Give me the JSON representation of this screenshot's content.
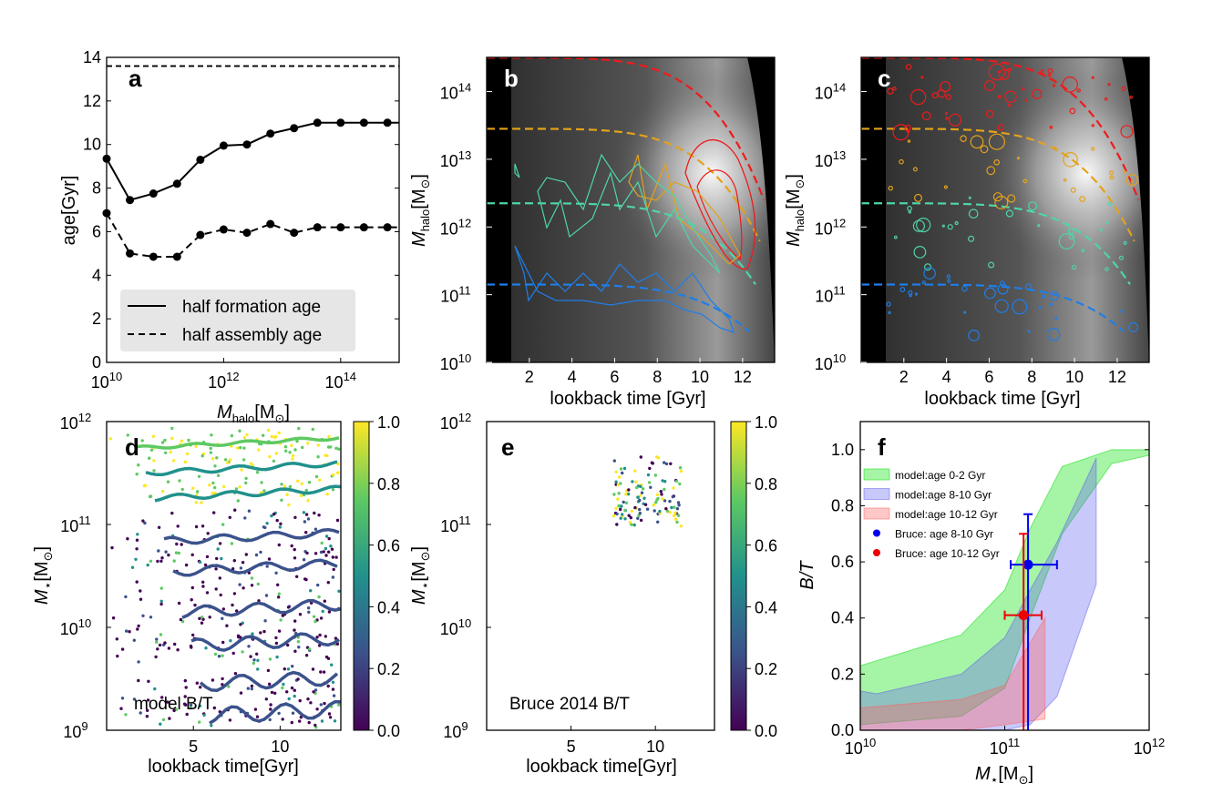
{
  "chart_data": [
    {
      "panel": "a",
      "type": "line",
      "xlabel": "M_halo[M_⊙]",
      "ylabel": "age[Gyr]",
      "xscale": "log",
      "xlim": [
        10000000000.0,
        1000000000000000.0
      ],
      "ylim": [
        0,
        14
      ],
      "x_ticks": [
        "10",
        "12",
        "14"
      ],
      "y_ticks": [
        "0",
        "2",
        "4",
        "6",
        "8",
        "10",
        "12",
        "14"
      ],
      "legend_position": "lower-left",
      "series": [
        {
          "name": "half formation age",
          "style": "solid",
          "x": [
            10000000000.0,
            25000000000.0,
            63000000000.0,
            160000000000.0,
            400000000000.0,
            1000000000000.0,
            2500000000000.0,
            6300000000000.0,
            16000000000000.0,
            40000000000000.0,
            100000000000000.0,
            250000000000000.0,
            630000000000000.0,
            1000000000000000.0
          ],
          "y": [
            9.35,
            7.45,
            7.75,
            8.2,
            9.3,
            9.95,
            10.0,
            10.5,
            10.75,
            11.0,
            11.0,
            11.0,
            11.0,
            11.0
          ]
        },
        {
          "name": "half assembly age",
          "style": "dashed",
          "x": [
            10000000000.0,
            25000000000.0,
            63000000000.0,
            160000000000.0,
            400000000000.0,
            1000000000000.0,
            2500000000000.0,
            6300000000000.0,
            16000000000000.0,
            40000000000000.0,
            100000000000000.0,
            250000000000000.0,
            630000000000000.0,
            1000000000000000.0
          ],
          "y": [
            6.85,
            5.0,
            4.85,
            4.85,
            5.85,
            6.1,
            5.95,
            6.35,
            5.95,
            6.2,
            6.2,
            6.2,
            6.2,
            6.2
          ]
        }
      ],
      "hline": 13.6
    },
    {
      "panel": "b",
      "type": "heatmap",
      "xlabel": "lookback time [Gyr]",
      "ylabel": "M_halo[M_⊙]",
      "yscale": "log",
      "xlim": [
        0,
        13.5
      ],
      "ylim": [
        10000000000.0,
        320000000000000.0
      ],
      "x_ticks": [
        "2",
        "4",
        "6",
        "8",
        "10",
        "12"
      ],
      "y_ticks": [
        "10",
        "11",
        "12",
        "13",
        "14"
      ],
      "tracks": [
        {
          "color": "#1f7ee8",
          "logM0": 11.15,
          "tend": 12.3
        },
        {
          "color": "#4fd4aa",
          "logM0": 12.35,
          "tend": 12.6
        },
        {
          "color": "#e3a21a",
          "logM0": 13.45,
          "tend": 12.8
        },
        {
          "color": "#ee1b1b",
          "logM0": 14.5,
          "tend": 13.0
        }
      ]
    },
    {
      "panel": "c",
      "type": "scatter",
      "xlabel": "lookback time [Gyr]",
      "ylabel": "M_halo[M_⊙]",
      "yscale": "log",
      "xlim": [
        0,
        13.5
      ],
      "ylim": [
        10000000000.0,
        320000000000000.0
      ],
      "x_ticks": [
        "2",
        "4",
        "6",
        "8",
        "10",
        "12"
      ],
      "y_ticks": [
        "10",
        "11",
        "12",
        "13",
        "14"
      ]
    },
    {
      "panel": "d",
      "type": "scatter",
      "xlabel": "lookback time[Gyr]",
      "ylabel": "M_⋆[M_⊙]",
      "yscale": "log",
      "xlim": [
        0,
        13.5
      ],
      "ylim": [
        1000000000.0,
        1000000000000.0
      ],
      "x_ticks": [
        "5",
        "10"
      ],
      "y_ticks": [
        "9",
        "10",
        "11",
        "12"
      ],
      "colorbar": {
        "label": "M_⋆[M_⊙]",
        "range": [
          0.0,
          1.0
        ],
        "ticks": [
          "0.0",
          "0.2",
          "0.4",
          "0.6",
          "0.8",
          "1.0"
        ]
      },
      "note": "model B/T"
    },
    {
      "panel": "e",
      "type": "scatter",
      "xlabel": "lookback time[Gyr]",
      "yscale": "log",
      "xlim": [
        0,
        13.5
      ],
      "ylim": [
        1000000000.0,
        1000000000000.0
      ],
      "x_ticks": [
        "5",
        "10"
      ],
      "y_ticks": [
        "9",
        "10",
        "11",
        "12"
      ],
      "colorbar": {
        "range": [
          0.0,
          1.0
        ],
        "ticks": [
          "0.0",
          "0.2",
          "0.4",
          "0.6",
          "0.8",
          "1.0"
        ]
      },
      "note": "Bruce 2014 B/T"
    },
    {
      "panel": "f",
      "type": "area",
      "xlabel": "M_⋆[M_⊙]",
      "ylabel": "B/T",
      "xscale": "log",
      "xlim": [
        10000000000.0,
        1000000000000.0
      ],
      "ylim": [
        0,
        1.1
      ],
      "x_ticks": [
        "10",
        "11",
        "12"
      ],
      "y_ticks": [
        "0.0",
        "0.2",
        "0.4",
        "0.6",
        "0.8",
        "1.0"
      ],
      "legend_position": "upper-left",
      "bands": [
        {
          "name": "model:age 0-2 Gyr",
          "color": "#00e000",
          "x": [
            10000000000.0,
            50000000000.0,
            100000000000.0,
            150000000000.0,
            250000000000.0,
            550000000000.0,
            1000000000000.0
          ],
          "upper": [
            0.23,
            0.34,
            0.5,
            0.72,
            0.94,
            1.0,
            1.0
          ],
          "lower": [
            0.02,
            0.05,
            0.15,
            0.4,
            0.7,
            0.95,
            0.98
          ]
        },
        {
          "name": "model:age 8-10 Gyr",
          "color": "#6060f0",
          "x": [
            10000000000.0,
            13000000000.0,
            50000000000.0,
            100000000000.0,
            150000000000.0,
            230000000000.0,
            430000000000.0
          ],
          "upper": [
            0.14,
            0.13,
            0.2,
            0.33,
            0.5,
            0.67,
            0.97
          ],
          "lower": [
            0.0,
            0.0,
            0.0,
            0.0,
            0.02,
            0.12,
            0.52
          ]
        },
        {
          "name": "model:age 10-12 Gyr",
          "color": "#ff6060",
          "x": [
            10000000000.0,
            50000000000.0,
            100000000000.0,
            190000000000.0
          ],
          "upper": [
            0.08,
            0.11,
            0.16,
            0.4
          ],
          "lower": [
            0.0,
            0.0,
            0.02,
            0.04
          ]
        }
      ],
      "points": [
        {
          "name": "Bruce: age 8-10 Gyr",
          "color": "#0000ee",
          "x": 145000000000.0,
          "y": 0.59,
          "xerr": [
            110000000000.0,
            230000000000.0
          ],
          "yerr": [
            0.0,
            0.77
          ]
        },
        {
          "name": "Bruce: age 10-12 Gyr",
          "color": "#ee0000",
          "x": 135000000000.0,
          "y": 0.41,
          "xerr": [
            100000000000.0,
            180000000000.0
          ],
          "yerr": [
            0.0,
            0.7
          ]
        }
      ]
    }
  ]
}
